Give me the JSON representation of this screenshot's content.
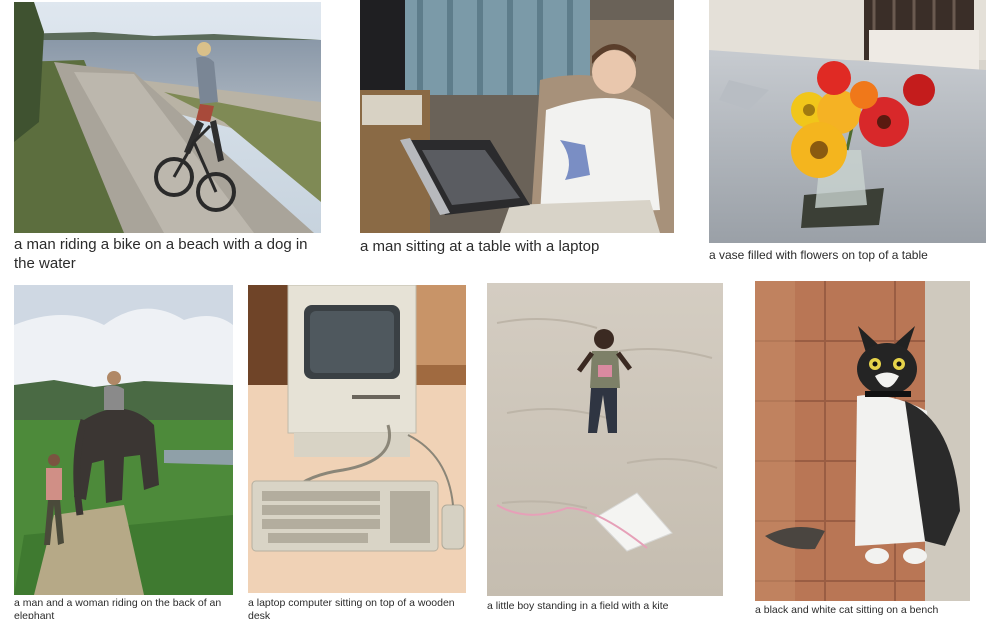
{
  "captions": {
    "bike": "a man riding a bike on a beach with a dog in the water",
    "laptop_man": "a man sitting at a table with a laptop",
    "vase": "a vase filled with flowers on top of a table",
    "elephant": "a man and a woman riding on the back of an elephant",
    "computer": "a laptop computer sitting on top of a wooden desk",
    "kite": "a little boy standing in a field with a kite",
    "cat": "a black and white cat sitting on a bench"
  }
}
